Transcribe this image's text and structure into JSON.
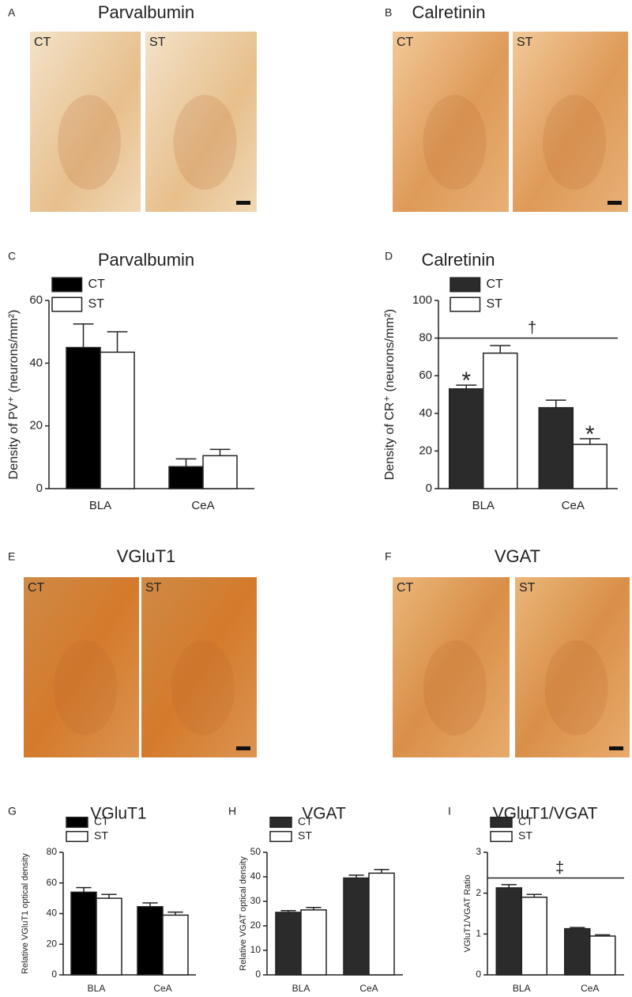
{
  "image_panels": [
    {
      "letter": "A",
      "title": "Parvalbumin",
      "labels": [
        "CT",
        "ST"
      ]
    },
    {
      "letter": "B",
      "title": "Calretinin",
      "labels": [
        "CT",
        "ST"
      ]
    },
    {
      "letter": "E",
      "title": "VGluT1",
      "labels": [
        "CT",
        "ST"
      ]
    },
    {
      "letter": "F",
      "title": "VGAT",
      "labels": [
        "CT",
        "ST"
      ]
    }
  ],
  "chart_data": [
    {
      "type": "bar",
      "letter": "C",
      "title": "Parvalbumin",
      "y_label": "Density of PV⁺ (neurons/mm²)",
      "categories": [
        "BLA",
        "CeA"
      ],
      "series": [
        {
          "name": "CT",
          "color": "#000000",
          "values": [
            45,
            7
          ],
          "errors": [
            7.5,
            2.5
          ]
        },
        {
          "name": "ST",
          "color": "#ffffff",
          "values": [
            43.5,
            10.5
          ],
          "errors": [
            6.5,
            2
          ]
        }
      ],
      "ylim": [
        0,
        60
      ],
      "yticks": [
        0,
        20,
        40,
        60
      ]
    },
    {
      "type": "bar",
      "letter": "D",
      "title": "Calretinin",
      "y_label": "Density of CR⁺ (neurons/mm²)",
      "categories": [
        "BLA",
        "CeA"
      ],
      "series": [
        {
          "name": "CT",
          "color": "#2b2b2b",
          "values": [
            53,
            43
          ],
          "errors": [
            2,
            4
          ],
          "marks": [
            "*",
            null
          ]
        },
        {
          "name": "ST",
          "color": "#ffffff",
          "values": [
            72,
            23.5
          ],
          "errors": [
            4,
            3
          ],
          "marks": [
            null,
            "*"
          ]
        }
      ],
      "annotations": [
        {
          "text": "†",
          "y": 80
        }
      ],
      "ylim": [
        0,
        100
      ],
      "yticks": [
        0,
        20,
        40,
        60,
        80,
        100
      ]
    },
    {
      "type": "bar",
      "letter": "G",
      "title": "VGluT1",
      "y_label": "Relative VGluT1 optical density",
      "categories": [
        "BLA",
        "CeA"
      ],
      "series": [
        {
          "name": "CT",
          "color": "#000000",
          "values": [
            54,
            44.5
          ],
          "errors": [
            3,
            2.5
          ]
        },
        {
          "name": "ST",
          "color": "#ffffff",
          "values": [
            50,
            39
          ],
          "errors": [
            2.5,
            2
          ]
        }
      ],
      "ylim": [
        0,
        80
      ],
      "yticks": [
        0,
        20,
        40,
        60,
        80
      ]
    },
    {
      "type": "bar",
      "letter": "H",
      "title": "VGAT",
      "y_label": "Relative VGAT optical density",
      "categories": [
        "BLA",
        "CeA"
      ],
      "series": [
        {
          "name": "CT",
          "color": "#2b2b2b",
          "values": [
            25.5,
            39.5
          ],
          "errors": [
            0.7,
            1.2
          ]
        },
        {
          "name": "ST",
          "color": "#ffffff",
          "values": [
            26.5,
            41.5
          ],
          "errors": [
            1,
            1.5
          ]
        }
      ],
      "ylim": [
        0,
        50
      ],
      "yticks": [
        0,
        10,
        20,
        30,
        40,
        50
      ]
    },
    {
      "type": "bar",
      "letter": "I",
      "title": "VGluT1/VGAT",
      "y_label": "VGluT1/VGAT Ratio",
      "categories": [
        "BLA",
        "CeA"
      ],
      "series": [
        {
          "name": "CT",
          "color": "#2b2b2b",
          "values": [
            2.13,
            1.13
          ],
          "errors": [
            0.08,
            0.03
          ]
        },
        {
          "name": "ST",
          "color": "#ffffff",
          "values": [
            1.9,
            0.95
          ],
          "errors": [
            0.07,
            0.03
          ]
        }
      ],
      "annotations": [
        {
          "text": "‡",
          "y": 2.37
        }
      ],
      "ylim": [
        0,
        3
      ],
      "yticks": [
        0,
        1,
        2,
        3
      ]
    }
  ]
}
